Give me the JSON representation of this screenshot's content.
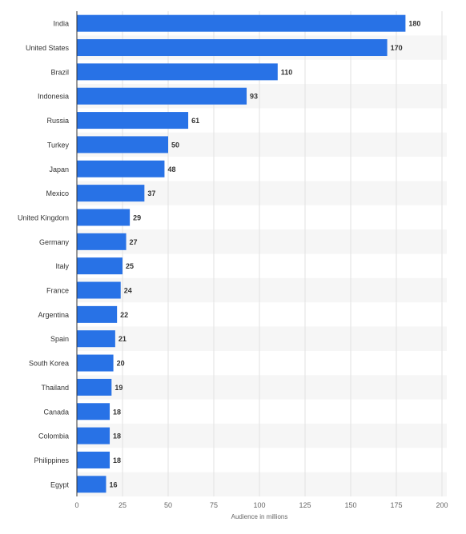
{
  "chart_data": {
    "type": "bar",
    "orientation": "horizontal",
    "categories": [
      "India",
      "United States",
      "Brazil",
      "Indonesia",
      "Russia",
      "Turkey",
      "Japan",
      "Mexico",
      "United Kingdom",
      "Germany",
      "Italy",
      "France",
      "Argentina",
      "Spain",
      "South Korea",
      "Thailand",
      "Canada",
      "Colombia",
      "Philippines",
      "Egypt"
    ],
    "values": [
      180,
      170,
      110,
      93,
      61,
      50,
      48,
      37,
      29,
      27,
      25,
      24,
      22,
      21,
      20,
      19,
      18,
      18,
      18,
      16
    ],
    "value_labels": [
      "180",
      "170",
      "110",
      "93",
      "61",
      "50",
      "48",
      "37",
      "29",
      "27",
      "25",
      "24",
      "22",
      "21",
      "20",
      "19",
      "18",
      "18",
      "18",
      "16"
    ],
    "title": "",
    "xlabel": "Audience in millions",
    "ylabel": "",
    "xlim": [
      0,
      200
    ],
    "xticks": [
      "0",
      "25",
      "50",
      "75",
      "100",
      "125",
      "150",
      "175",
      "200"
    ],
    "grid": true,
    "legend": "none",
    "colors": {
      "bar": "#2872e6",
      "band": "#f6f6f6",
      "grid": "#e2e2e2",
      "axis": "#333333",
      "category_text": "#333333",
      "value_text": "#333333",
      "tick_text": "#666666"
    }
  }
}
